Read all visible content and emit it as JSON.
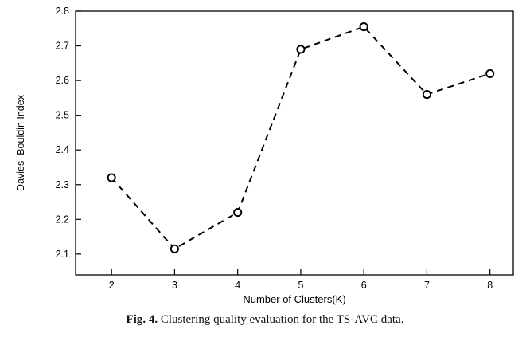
{
  "figure": {
    "caption_label": "Fig. 4.",
    "caption_text": " Clustering quality evaluation for the TS-AVC data."
  },
  "chart_data": {
    "type": "line",
    "title": "",
    "xlabel": "Number of Clusters(K)",
    "ylabel": "Davies–Bouldin Index",
    "x": [
      2,
      3,
      4,
      5,
      6,
      7,
      8
    ],
    "values": [
      2.32,
      2.115,
      2.22,
      2.69,
      2.755,
      2.56,
      2.62
    ],
    "x_ticks": [
      "2",
      "3",
      "4",
      "5",
      "6",
      "7",
      "8"
    ],
    "x_tick_values": [
      2,
      3,
      4,
      5,
      6,
      7,
      8
    ],
    "y_ticks": [
      "2.1",
      "2.2",
      "2.3",
      "2.4",
      "2.5",
      "2.6",
      "2.7",
      "2.8"
    ],
    "y_tick_values": [
      2.1,
      2.2,
      2.3,
      2.4,
      2.5,
      2.6,
      2.7,
      2.8
    ],
    "xlim": [
      1.43,
      8.37
    ],
    "ylim": [
      2.04,
      2.8
    ],
    "line_style": "dashed",
    "marker": "open-circle",
    "line_color": "#000000",
    "marker_fill": "#ffffff",
    "grid": false,
    "legend": false
  }
}
